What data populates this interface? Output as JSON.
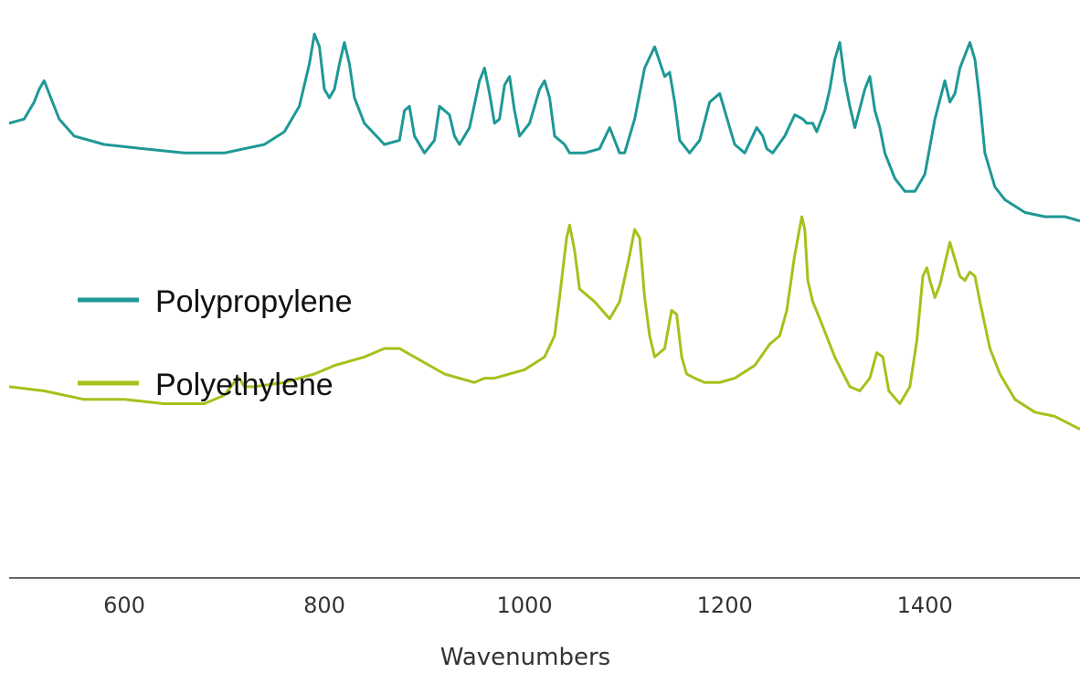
{
  "chart_data": {
    "type": "line",
    "xlabel": "Wavenumbers",
    "ylabel": "",
    "xlim": [
      485,
      1555
    ],
    "ylim": [
      -0.28,
      1.05
    ],
    "y_axis_shown": false,
    "grid": false,
    "legend_position": "left",
    "x_ticks": [
      {
        "value": 600,
        "label": "600"
      },
      {
        "value": 800,
        "label": "800"
      },
      {
        "value": 1000,
        "label": "1000"
      },
      {
        "value": 1200,
        "label": "1200"
      },
      {
        "value": 1400,
        "label": "1400"
      }
    ],
    "series": [
      {
        "name": "Polypropylene",
        "color": "#1e9896",
        "x": [
          485,
          500,
          510,
          515,
          520,
          525,
          535,
          550,
          580,
          620,
          660,
          700,
          740,
          760,
          775,
          785,
          790,
          795,
          800,
          805,
          810,
          815,
          820,
          825,
          830,
          840,
          860,
          875,
          880,
          885,
          890,
          900,
          910,
          915,
          925,
          930,
          935,
          945,
          955,
          960,
          965,
          970,
          975,
          980,
          985,
          990,
          995,
          1005,
          1015,
          1020,
          1025,
          1030,
          1040,
          1045,
          1050,
          1060,
          1075,
          1085,
          1090,
          1095,
          1100,
          1110,
          1120,
          1130,
          1140,
          1145,
          1150,
          1155,
          1165,
          1175,
          1185,
          1195,
          1205,
          1210,
          1220,
          1232,
          1238,
          1242,
          1248,
          1260,
          1270,
          1278,
          1282,
          1288,
          1292,
          1300,
          1305,
          1310,
          1315,
          1320,
          1325,
          1330,
          1340,
          1345,
          1350,
          1355,
          1360,
          1370,
          1380,
          1390,
          1400,
          1410,
          1420,
          1425,
          1430,
          1435,
          1440,
          1445,
          1450,
          1455,
          1460,
          1470,
          1480,
          1500,
          1520,
          1540,
          1555
        ],
        "values": [
          0.79,
          0.8,
          0.84,
          0.87,
          0.89,
          0.86,
          0.8,
          0.76,
          0.74,
          0.73,
          0.72,
          0.72,
          0.74,
          0.77,
          0.83,
          0.93,
          1.0,
          0.97,
          0.87,
          0.85,
          0.87,
          0.93,
          0.98,
          0.93,
          0.85,
          0.79,
          0.74,
          0.75,
          0.82,
          0.83,
          0.76,
          0.72,
          0.75,
          0.83,
          0.81,
          0.76,
          0.74,
          0.78,
          0.89,
          0.92,
          0.86,
          0.79,
          0.8,
          0.88,
          0.9,
          0.82,
          0.76,
          0.79,
          0.87,
          0.89,
          0.85,
          0.76,
          0.74,
          0.72,
          0.72,
          0.72,
          0.73,
          0.78,
          0.75,
          0.72,
          0.72,
          0.8,
          0.92,
          0.97,
          0.9,
          0.91,
          0.84,
          0.75,
          0.72,
          0.75,
          0.84,
          0.86,
          0.78,
          0.74,
          0.72,
          0.78,
          0.76,
          0.73,
          0.72,
          0.76,
          0.81,
          0.8,
          0.79,
          0.79,
          0.77,
          0.82,
          0.87,
          0.94,
          0.98,
          0.89,
          0.83,
          0.78,
          0.87,
          0.9,
          0.82,
          0.78,
          0.72,
          0.66,
          0.63,
          0.63,
          0.67,
          0.8,
          0.89,
          0.84,
          0.86,
          0.92,
          0.95,
          0.98,
          0.94,
          0.84,
          0.72,
          0.64,
          0.61,
          0.58,
          0.57,
          0.57,
          0.56
        ]
      },
      {
        "name": "Polyethylene",
        "color": "#a3c21c",
        "x": [
          485,
          520,
          560,
          600,
          640,
          680,
          700,
          710,
          715,
          720,
          730,
          760,
          790,
          810,
          840,
          860,
          875,
          890,
          920,
          950,
          960,
          970,
          1000,
          1020,
          1030,
          1035,
          1042,
          1045,
          1050,
          1055,
          1060,
          1070,
          1085,
          1095,
          1105,
          1110,
          1115,
          1120,
          1125,
          1130,
          1140,
          1147,
          1152,
          1157,
          1162,
          1170,
          1180,
          1195,
          1210,
          1230,
          1245,
          1255,
          1262,
          1270,
          1277,
          1280,
          1283,
          1288,
          1295,
          1310,
          1325,
          1335,
          1345,
          1352,
          1358,
          1364,
          1375,
          1385,
          1392,
          1398,
          1402,
          1405,
          1410,
          1415,
          1420,
          1425,
          1430,
          1435,
          1440,
          1445,
          1450,
          1455,
          1465,
          1475,
          1490,
          1510,
          1530,
          1555
        ],
        "values": [
          0.17,
          0.16,
          0.14,
          0.14,
          0.13,
          0.13,
          0.15,
          0.18,
          0.19,
          0.17,
          0.17,
          0.18,
          0.2,
          0.22,
          0.24,
          0.26,
          0.26,
          0.24,
          0.2,
          0.18,
          0.19,
          0.19,
          0.21,
          0.24,
          0.29,
          0.38,
          0.52,
          0.55,
          0.49,
          0.4,
          0.39,
          0.37,
          0.33,
          0.37,
          0.48,
          0.54,
          0.52,
          0.38,
          0.29,
          0.24,
          0.26,
          0.35,
          0.34,
          0.24,
          0.2,
          0.19,
          0.18,
          0.18,
          0.19,
          0.22,
          0.27,
          0.29,
          0.35,
          0.48,
          0.57,
          0.54,
          0.42,
          0.37,
          0.33,
          0.24,
          0.17,
          0.16,
          0.19,
          0.25,
          0.24,
          0.16,
          0.13,
          0.17,
          0.28,
          0.43,
          0.45,
          0.42,
          0.38,
          0.41,
          0.46,
          0.51,
          0.47,
          0.43,
          0.42,
          0.44,
          0.43,
          0.37,
          0.26,
          0.2,
          0.14,
          0.11,
          0.1,
          0.07
        ]
      }
    ]
  }
}
